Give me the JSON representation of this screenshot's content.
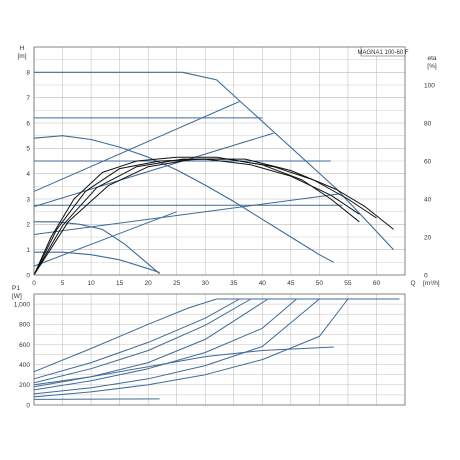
{
  "colors": {
    "curve": "#3d6b98",
    "curve_dark": "#111111",
    "grid": "#b9b9b9",
    "frame": "#666666"
  },
  "chart_data": [
    {
      "type": "line",
      "title": "MAGNA1 100-60 F",
      "xlabel": "Q [m³/h]",
      "ylabel": "H [m]",
      "y2label": "eta [%]",
      "xlim": [
        0,
        65
      ],
      "ylim": [
        0,
        9
      ],
      "y2lim": [
        0,
        120
      ],
      "grid": true,
      "xticks": [
        "0",
        "5",
        "10",
        "15",
        "20",
        "25",
        "30",
        "35",
        "40",
        "45",
        "50",
        "55",
        "60"
      ],
      "yticks": [
        "0",
        "1",
        "2",
        "3",
        "4",
        "5",
        "6",
        "7",
        "8"
      ],
      "y2ticks": [
        "0",
        "20",
        "40",
        "60",
        "80",
        "100"
      ],
      "head_curves": [
        {
          "x": [
            0,
            26,
            32,
            53,
            63
          ],
          "y": [
            8,
            8,
            7.7,
            3.4,
            1
          ]
        },
        {
          "x": [
            0,
            5,
            10,
            15,
            20,
            25,
            30,
            35,
            40,
            45,
            50,
            52.5
          ],
          "y": [
            5.4,
            5.5,
            5.35,
            5.05,
            4.65,
            4.15,
            3.55,
            2.9,
            2.2,
            1.5,
            0.8,
            0.5
          ]
        },
        {
          "x": [
            0,
            4,
            8,
            12,
            16,
            22
          ],
          "y": [
            2.1,
            2.1,
            2.0,
            1.8,
            1.2,
            0.05
          ]
        },
        {
          "x": [
            0,
            5,
            10,
            15,
            20,
            22
          ],
          "y": [
            0.9,
            0.9,
            0.8,
            0.6,
            0.25,
            0.1
          ]
        }
      ],
      "system_lines": [
        {
          "x": [
            0,
            36
          ],
          "y": [
            3.3,
            6.85
          ]
        },
        {
          "x": [
            0,
            42
          ],
          "y": [
            2.7,
            5.6
          ]
        },
        {
          "x": [
            0,
            53.5
          ],
          "y": [
            1.6,
            3.2
          ]
        },
        {
          "x": [
            0,
            25
          ],
          "y": [
            0.35,
            2.5
          ]
        }
      ],
      "operating_lines": [
        {
          "x": [
            0,
            40
          ],
          "y": [
            6.2,
            6.2
          ]
        },
        {
          "x": [
            0,
            52
          ],
          "y": [
            4.5,
            4.5
          ]
        },
        {
          "x": [
            0,
            54
          ],
          "y": [
            2.75,
            2.75
          ]
        }
      ],
      "efficiency_curves": [
        {
          "x": [
            0,
            3,
            7,
            12,
            18,
            25,
            32,
            40,
            47,
            52,
            57
          ],
          "y": [
            0,
            20,
            40,
            54,
            60,
            62,
            62,
            58,
            50,
            40,
            28
          ]
        },
        {
          "x": [
            0,
            4,
            9,
            15,
            22,
            30,
            38,
            45,
            52,
            57
          ],
          "y": [
            0,
            24,
            44,
            56,
            60,
            61,
            58,
            52,
            42,
            32
          ]
        },
        {
          "x": [
            0,
            5,
            11,
            18,
            26,
            34,
            42,
            49,
            55,
            60
          ],
          "y": [
            0,
            26,
            46,
            57,
            61,
            61,
            57,
            50,
            40,
            30
          ]
        },
        {
          "x": [
            0,
            6,
            13,
            20,
            28,
            37,
            45,
            53,
            58,
            63
          ],
          "y": [
            0,
            28,
            47,
            57,
            61,
            61,
            55,
            45,
            36,
            24
          ]
        }
      ]
    },
    {
      "type": "line",
      "xlabel": "",
      "ylabel": "P1 [W]",
      "xlim": [
        0,
        65
      ],
      "ylim": [
        0,
        1100
      ],
      "grid": true,
      "yticks": [
        "0",
        "200",
        "400",
        "600",
        "800",
        "1,000"
      ],
      "power_curves": [
        {
          "x": [
            0,
            10,
            20,
            27,
            32,
            64
          ],
          "y": [
            330,
            560,
            800,
            960,
            1050,
            1050
          ]
        },
        {
          "x": [
            0,
            10,
            20,
            30,
            36,
            64
          ],
          "y": [
            260,
            420,
            620,
            860,
            1050,
            1050
          ]
        },
        {
          "x": [
            0,
            10,
            20,
            30,
            38,
            64
          ],
          "y": [
            220,
            360,
            540,
            790,
            1050,
            1050
          ]
        },
        {
          "x": [
            0,
            10,
            20,
            30,
            41,
            64
          ],
          "y": [
            180,
            280,
            420,
            650,
            1050,
            1050
          ]
        },
        {
          "x": [
            0,
            10,
            20,
            30,
            40,
            46,
            64
          ],
          "y": [
            150,
            240,
            360,
            520,
            760,
            1050,
            1050
          ]
        },
        {
          "x": [
            0,
            10,
            20,
            30,
            40,
            50,
            64
          ],
          "y": [
            110,
            170,
            260,
            390,
            580,
            1050,
            1050
          ]
        },
        {
          "x": [
            0,
            10,
            20,
            30,
            40,
            50,
            55,
            64
          ],
          "y": [
            80,
            130,
            200,
            300,
            450,
            680,
            1050,
            1050
          ]
        },
        {
          "x": [
            0,
            10,
            20,
            30,
            40,
            52.5
          ],
          "y": [
            200,
            280,
            380,
            480,
            540,
            575
          ]
        },
        {
          "x": [
            0,
            22
          ],
          "y": [
            55,
            60
          ]
        }
      ]
    }
  ]
}
